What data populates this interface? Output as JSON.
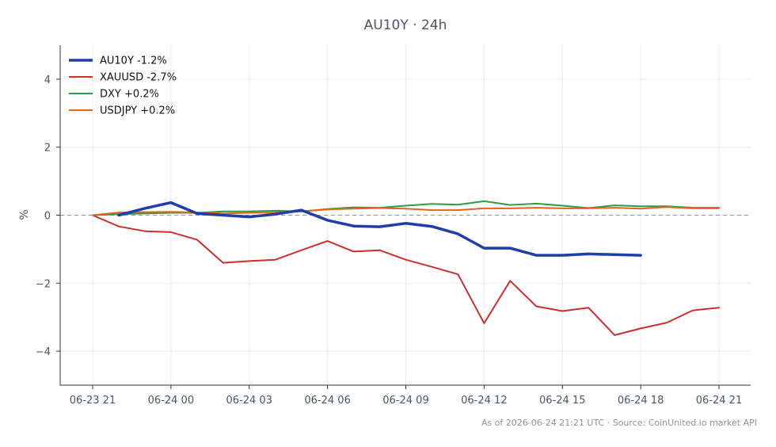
{
  "chart_data": {
    "type": "line",
    "title": "AU10Y · 24h",
    "xlabel": "",
    "ylabel": "%",
    "footer": "As of 2026-06-24 21:21 UTC · Source: CoinUnited.io market API",
    "x_ticks": [
      "06-23 21",
      "06-24 00",
      "06-24 03",
      "06-24 06",
      "06-24 09",
      "06-24 12",
      "06-24 15",
      "06-24 18",
      "06-24 21"
    ],
    "y_ticks": [
      "4",
      "2",
      "0",
      "−2",
      "−4"
    ],
    "y_tick_values": [
      4,
      2,
      0,
      -2,
      -4
    ],
    "ylim": [
      -5,
      5
    ],
    "x_hours": [
      0,
      24
    ],
    "grid": true,
    "legend_position": "top-left",
    "zero_line": true,
    "series": [
      {
        "name": "AU10Y -1.2%",
        "color": "#1f3ea8",
        "width": 3.5,
        "x": [
          1,
          2,
          3,
          4,
          5,
          6,
          7,
          8,
          9,
          10,
          11,
          12,
          13,
          14,
          15,
          16,
          17,
          18,
          19,
          20,
          21
        ],
        "y": [
          0.0,
          0.2,
          0.37,
          0.05,
          0.0,
          -0.05,
          0.03,
          0.15,
          -0.15,
          -0.32,
          -0.34,
          -0.24,
          -0.33,
          -0.55,
          -0.97,
          -0.97,
          -1.18,
          -1.18,
          -1.14,
          -1.16,
          -1.18
        ]
      },
      {
        "name": "XAUUSD -2.7%",
        "color": "#c9302c",
        "width": 2,
        "x": [
          0,
          1,
          2,
          3,
          4,
          5,
          6,
          7,
          8,
          9,
          10,
          11,
          12,
          13,
          14,
          15,
          16,
          17,
          18,
          19,
          20,
          21,
          22,
          23,
          24
        ],
        "y": [
          0.0,
          -0.33,
          -0.47,
          -0.5,
          -0.72,
          -1.4,
          -1.35,
          -1.31,
          -1.03,
          -0.76,
          -1.07,
          -1.03,
          -1.31,
          -1.52,
          -1.74,
          -3.18,
          -1.93,
          -2.68,
          -2.82,
          -2.72,
          -3.53,
          -3.33,
          -3.16,
          -2.8,
          -2.72
        ]
      },
      {
        "name": "DXY +0.2%",
        "color": "#2e9b4b",
        "width": 2,
        "x": [
          0,
          1,
          2,
          3,
          4,
          5,
          6,
          7,
          8,
          9,
          10,
          11,
          12,
          13,
          14,
          15,
          16,
          17,
          18,
          19,
          20,
          21,
          22,
          23,
          24
        ],
        "y": [
          0.0,
          0.03,
          0.05,
          0.07,
          0.07,
          0.11,
          0.11,
          0.13,
          0.11,
          0.18,
          0.23,
          0.22,
          0.28,
          0.33,
          0.31,
          0.41,
          0.3,
          0.34,
          0.28,
          0.21,
          0.29,
          0.26,
          0.26,
          0.22,
          0.22
        ]
      },
      {
        "name": "USDJPY +0.2%",
        "color": "#e0661c",
        "width": 2,
        "x": [
          0,
          1,
          2,
          3,
          4,
          5,
          6,
          7,
          8,
          9,
          10,
          11,
          12,
          13,
          14,
          15,
          16,
          17,
          18,
          19,
          20,
          21,
          22,
          23,
          24
        ],
        "y": [
          0.0,
          0.08,
          0.09,
          0.1,
          0.08,
          0.05,
          0.07,
          0.08,
          0.11,
          0.17,
          0.19,
          0.21,
          0.19,
          0.15,
          0.15,
          0.2,
          0.2,
          0.22,
          0.2,
          0.2,
          0.22,
          0.19,
          0.24,
          0.2,
          0.2
        ]
      }
    ]
  }
}
